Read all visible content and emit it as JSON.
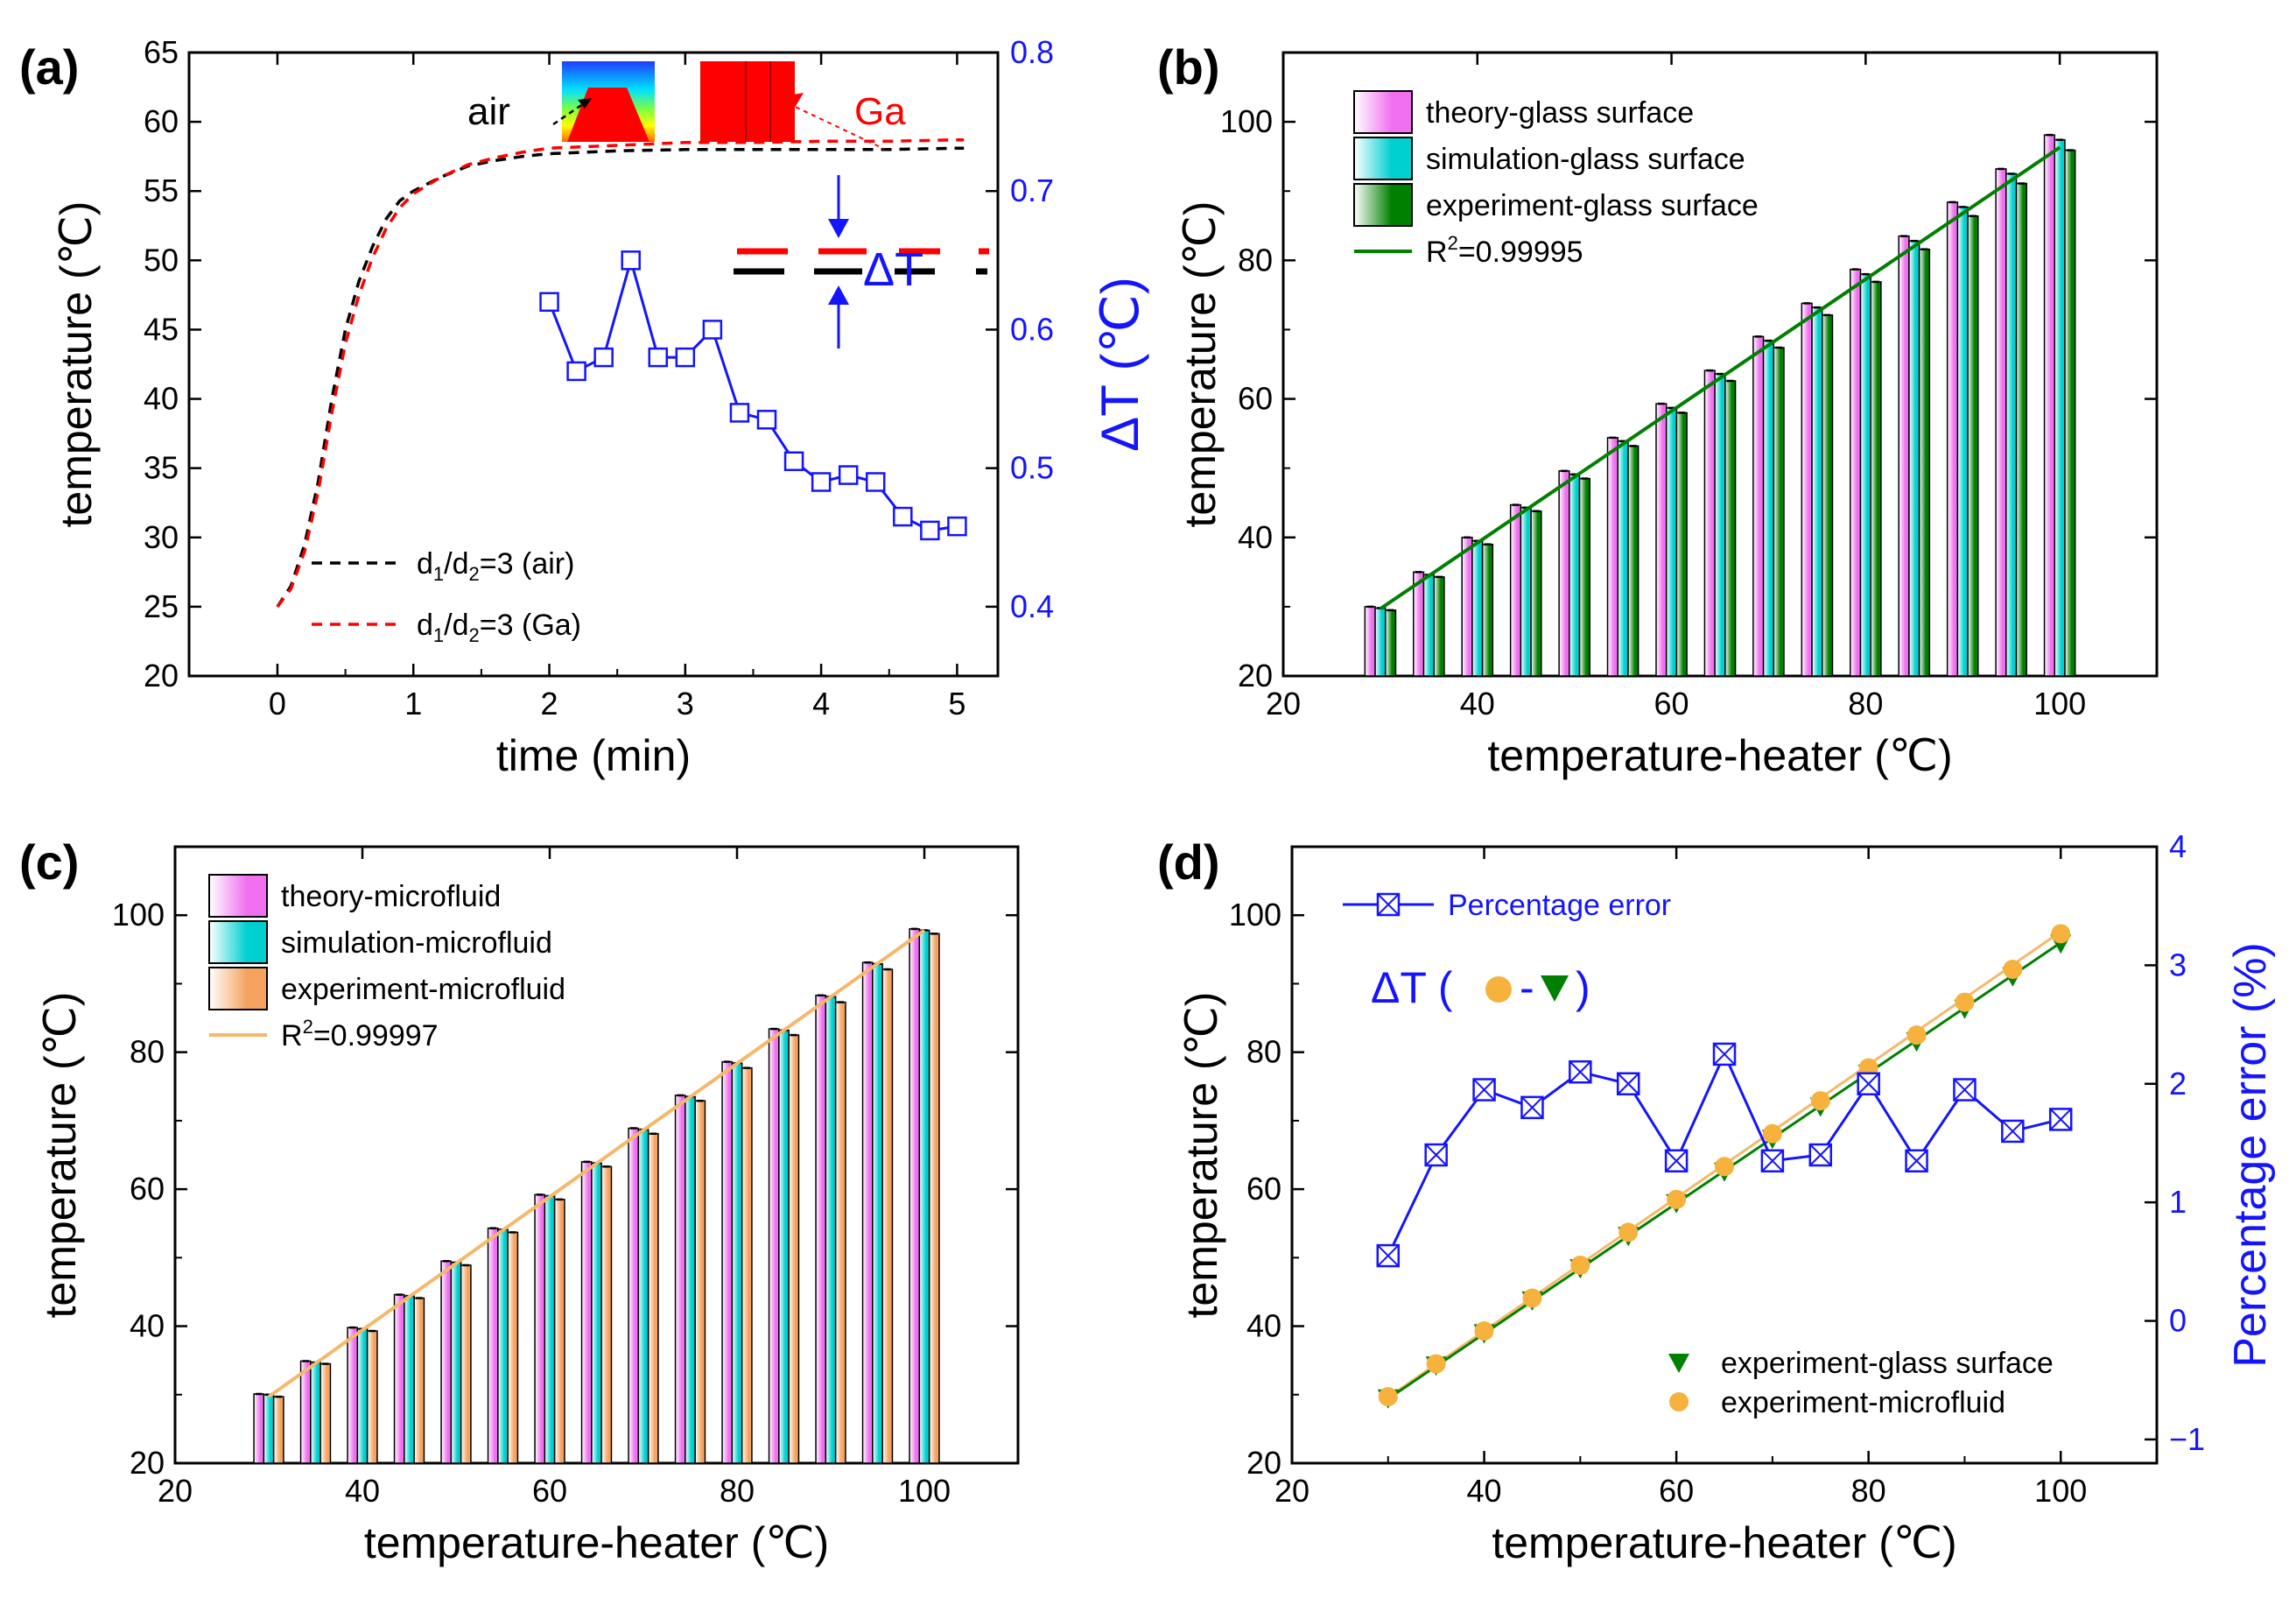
{
  "figure": {
    "colors": {
      "black": "#000000",
      "red": "#ff0000",
      "blue": "#1414ff",
      "green": "#008000",
      "pink": "#f070f0",
      "cyan": "#00d0d0",
      "orange": "#f4a460",
      "ygold": "#f6b23c",
      "lineOrange": "#f6b86a"
    }
  },
  "chart_data": [
    {
      "id": "a",
      "panel_label": "(a)",
      "type": "line",
      "xlabel": "time (min)",
      "ylabel": "temperature (℃)",
      "y2label": "ΔT (℃)",
      "xlim": [
        -0.65,
        5.3
      ],
      "ylim": [
        20,
        65
      ],
      "y2lim": [
        0.35,
        0.8
      ],
      "xticks": [
        "0",
        "1",
        "2",
        "3",
        "4",
        "5"
      ],
      "yticks": [
        "20",
        "25",
        "30",
        "35",
        "40",
        "45",
        "50",
        "55",
        "60",
        "65"
      ],
      "y2ticks": [
        "0.4",
        "0.5",
        "0.6",
        "0.7",
        "0.8"
      ],
      "series": [
        {
          "name": "d1/d2=3 (air)",
          "legend_main": "d",
          "legend_sub1": "1",
          "legend_mid": "/d",
          "legend_sub2": "2",
          "legend_tail": "=3 (air)",
          "style": "dashed",
          "color": "#000000",
          "axis": "left",
          "x": [
            0,
            0.1,
            0.2,
            0.3,
            0.4,
            0.5,
            0.6,
            0.7,
            0.8,
            0.9,
            1.0,
            1.2,
            1.4,
            1.6,
            1.8,
            2.0,
            2.5,
            3.0,
            3.5,
            4.0,
            4.5,
            5.0,
            5.05
          ],
          "y": [
            25,
            26.5,
            29.5,
            34,
            40,
            45,
            48.5,
            51,
            53,
            54.3,
            55,
            56,
            56.8,
            57.2,
            57.5,
            57.7,
            57.9,
            58,
            58,
            58,
            58,
            58.1,
            58.1
          ]
        },
        {
          "name": "d1/d2=3 (Ga)",
          "legend_main": "d",
          "legend_sub1": "1",
          "legend_mid": "/d",
          "legend_sub2": "2",
          "legend_tail": "=3 (Ga)",
          "style": "dashed",
          "color": "#ff0000",
          "axis": "left",
          "x": [
            0,
            0.1,
            0.2,
            0.3,
            0.4,
            0.5,
            0.6,
            0.7,
            0.8,
            0.9,
            1.0,
            1.2,
            1.4,
            1.6,
            1.8,
            2.0,
            2.5,
            3.0,
            3.5,
            4.0,
            4.5,
            5.0,
            5.05
          ],
          "y": [
            25,
            26.3,
            29,
            33.3,
            39,
            44,
            47.5,
            50.2,
            52.3,
            53.8,
            54.8,
            56,
            56.9,
            57.4,
            57.8,
            58.1,
            58.3,
            58.5,
            58.5,
            58.6,
            58.6,
            58.7,
            58.7
          ]
        },
        {
          "name": "ΔT",
          "style": "open-square-markers",
          "color": "#1414ff",
          "axis": "right",
          "x": [
            2.0,
            2.2,
            2.4,
            2.6,
            2.8,
            3.0,
            3.2,
            3.4,
            3.6,
            3.8,
            4.0,
            4.2,
            4.4,
            4.6,
            4.8,
            5.0
          ],
          "y": [
            0.62,
            0.57,
            0.58,
            0.65,
            0.58,
            0.58,
            0.6,
            0.54,
            0.535,
            0.505,
            0.49,
            0.495,
            0.49,
            0.465,
            0.455,
            0.458
          ]
        }
      ],
      "annotations": {
        "air": "air",
        "ga": "Ga",
        "dt": "ΔT"
      }
    },
    {
      "id": "b",
      "panel_label": "(b)",
      "type": "bar",
      "xlabel": "temperature-heater (℃)",
      "ylabel": "temperature (℃)",
      "xlim": [
        20,
        110
      ],
      "ylim": [
        20,
        110
      ],
      "xticks": [
        "20",
        "40",
        "60",
        "80",
        "100"
      ],
      "yticks": [
        "20",
        "40",
        "60",
        "80",
        "100"
      ],
      "categories": [
        30,
        35,
        40,
        45,
        50,
        55,
        60,
        65,
        70,
        75,
        80,
        85,
        90,
        95,
        100
      ],
      "series": [
        {
          "name": "theory-glass surface",
          "color": "#f070f0",
          "values": [
            30.0,
            35.0,
            40.0,
            44.7,
            49.6,
            54.4,
            59.3,
            64.1,
            69.0,
            73.8,
            78.7,
            83.5,
            88.4,
            93.2,
            98.1
          ]
        },
        {
          "name": "simulation-glass surface",
          "color": "#00d0d0",
          "values": [
            29.8,
            34.6,
            39.5,
            44.3,
            49.1,
            53.9,
            58.7,
            63.6,
            68.4,
            73.2,
            78.0,
            82.8,
            87.7,
            92.5,
            97.4
          ]
        },
        {
          "name": "experiment-glass surface",
          "color": "#008000",
          "values": [
            29.5,
            34.3,
            39.0,
            43.8,
            48.5,
            53.2,
            58.0,
            62.6,
            67.4,
            72.1,
            76.9,
            81.6,
            86.4,
            91.1,
            95.9
          ]
        }
      ],
      "fit": {
        "label_main": "R",
        "label_sup": "2",
        "label_tail": "=0.99995",
        "color": "#008000",
        "x": [
          30,
          100
        ],
        "y": [
          29.7,
          96.3
        ]
      }
    },
    {
      "id": "c",
      "panel_label": "(c)",
      "type": "bar",
      "xlabel": "temperature-heater (℃)",
      "ylabel": "temperature (℃)",
      "xlim": [
        20,
        110
      ],
      "ylim": [
        20,
        110
      ],
      "xticks": [
        "20",
        "40",
        "60",
        "80",
        "100"
      ],
      "yticks": [
        "20",
        "40",
        "60",
        "80",
        "100"
      ],
      "categories": [
        30,
        35,
        40,
        45,
        50,
        55,
        60,
        65,
        70,
        75,
        80,
        85,
        90,
        95,
        100
      ],
      "series": [
        {
          "name": "theory-microfluid",
          "color": "#f070f0",
          "values": [
            30.1,
            34.9,
            39.8,
            44.6,
            49.5,
            54.3,
            59.2,
            64.0,
            68.9,
            73.7,
            78.6,
            83.4,
            88.3,
            93.1,
            98.0
          ]
        },
        {
          "name": "simulation-microfluid",
          "color": "#00d0d0",
          "values": [
            30.0,
            34.7,
            39.6,
            44.4,
            49.3,
            54.1,
            59.0,
            63.8,
            68.7,
            73.5,
            78.4,
            83.2,
            88.1,
            92.9,
            97.8
          ]
        },
        {
          "name": "experiment-microfluid",
          "color": "#f4a460",
          "values": [
            29.7,
            34.5,
            39.3,
            44.1,
            48.9,
            53.7,
            58.5,
            63.3,
            68.1,
            72.9,
            77.7,
            82.5,
            87.3,
            92.1,
            97.3
          ]
        }
      ],
      "fit": {
        "label_main": "R",
        "label_sup": "2",
        "label_tail": "=0.99997",
        "color": "#f6b86a",
        "x": [
          30,
          100
        ],
        "y": [
          29.7,
          97.8
        ]
      }
    },
    {
      "id": "d",
      "panel_label": "(d)",
      "type": "scatter",
      "xlabel": "temperature-heater (℃)",
      "ylabel": "temperature (℃)",
      "y2label": "Percentage error (%)",
      "xlim": [
        20,
        110
      ],
      "ylim": [
        20,
        110
      ],
      "y2lim": [
        -1.2,
        4
      ],
      "xticks": [
        "20",
        "40",
        "60",
        "80",
        "100"
      ],
      "yticks": [
        "20",
        "40",
        "60",
        "80",
        "100"
      ],
      "y2ticks": [
        "−1",
        "0",
        "1",
        "2",
        "3",
        "4"
      ],
      "x": [
        30,
        35,
        40,
        45,
        50,
        55,
        60,
        65,
        70,
        75,
        80,
        85,
        90,
        95,
        100
      ],
      "series": [
        {
          "name": "experiment-glass surface",
          "marker": "down-triangle",
          "color": "#008000",
          "axis": "left",
          "values": [
            29.5,
            34.3,
            39.0,
            43.8,
            48.5,
            53.2,
            58.0,
            62.6,
            67.4,
            72.1,
            76.9,
            81.6,
            86.4,
            91.1,
            95.9
          ]
        },
        {
          "name": "experiment-microfluid",
          "marker": "circle",
          "color": "#f6b23c",
          "axis": "left",
          "values": [
            29.7,
            34.5,
            39.3,
            44.1,
            48.9,
            53.7,
            58.5,
            63.3,
            68.1,
            72.9,
            77.7,
            82.5,
            87.3,
            92.1,
            97.3
          ]
        },
        {
          "name": "Percentage error",
          "marker": "crossed-square",
          "color": "#1414ff",
          "axis": "right",
          "values": [
            0.55,
            1.4,
            1.95,
            1.8,
            2.1,
            2.0,
            1.35,
            2.25,
            1.35,
            1.4,
            2.0,
            1.35,
            1.95,
            1.6,
            1.7
          ]
        }
      ],
      "annotations": {
        "dt_prefix": "ΔT (",
        "dt_dash": "-",
        "dt_suffix": ")"
      }
    }
  ]
}
